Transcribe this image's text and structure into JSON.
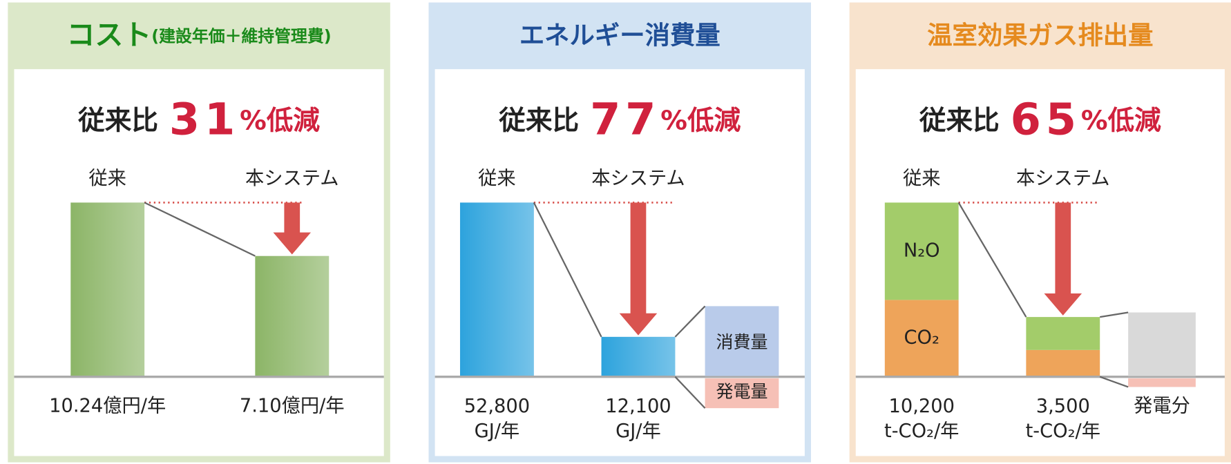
{
  "chart_data": [
    {
      "type": "bar",
      "title": "コスト",
      "subtitle": "(建設年価＋維持管理費)",
      "headline": {
        "prefix": "従来比",
        "value": 31,
        "suffix": "%低減"
      },
      "categories": [
        "従来",
        "本システム"
      ],
      "values": [
        10.24,
        7.1
      ],
      "value_labels": [
        "10.24億円/年",
        "7.10億円/年"
      ],
      "color": "#8cb567"
    },
    {
      "type": "bar",
      "title": "エネルギー消費量",
      "headline": {
        "prefix": "従来比",
        "value": 77,
        "suffix": "%低減"
      },
      "categories": [
        "従来",
        "本システム"
      ],
      "values": [
        52800,
        12100
      ],
      "value_labels": [
        "52,800\nGJ/年",
        "12,100\nGJ/年"
      ],
      "color": "#2da3dd",
      "side_labels": [
        "消費量",
        "発電量"
      ]
    },
    {
      "type": "stacked_bar",
      "title": "温室効果ガス排出量",
      "headline": {
        "prefix": "従来比",
        "value": 65,
        "suffix": "%低減"
      },
      "categories": [
        "従来",
        "本システム"
      ],
      "series": [
        {
          "name": "N₂O",
          "color": "#a3cc6a",
          "values": [
            5700,
            1930
          ]
        },
        {
          "name": "CO₂",
          "color": "#eea45a",
          "values": [
            4500,
            1570
          ]
        }
      ],
      "totals": [
        10200,
        3500
      ],
      "value_labels": [
        "10,200\nt-CO₂/年",
        "3,500\nt-CO₂/年"
      ],
      "side_labels": [
        "発電分"
      ]
    }
  ]
}
